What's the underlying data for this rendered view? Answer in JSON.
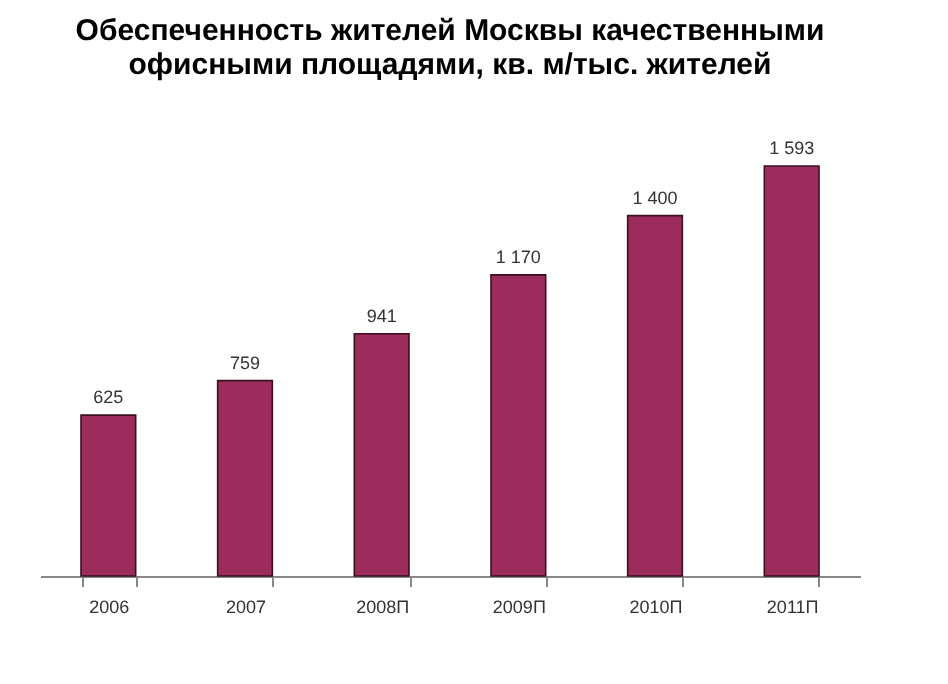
{
  "chart_data": {
    "type": "bar",
    "title": "Обеспеченность жителей Москвы качественными офисными площадями, кв. м/тыс. жителей",
    "categories": [
      "2006",
      "2007",
      "2008П",
      "2009П",
      "2010П",
      "2011П"
    ],
    "values": [
      625,
      759,
      941,
      1170,
      1400,
      1593
    ],
    "value_labels": [
      "625",
      "759",
      "941",
      "1 170",
      "1 400",
      "1 593"
    ],
    "color": "#9c2c5c",
    "grid": false
  }
}
